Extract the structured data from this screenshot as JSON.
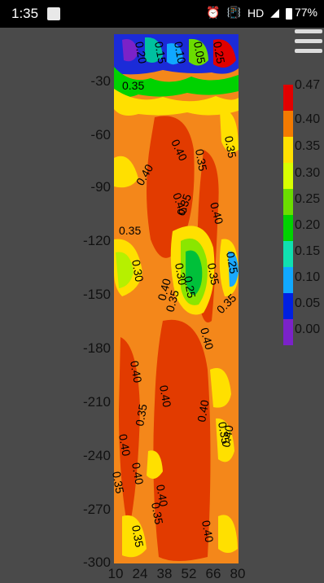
{
  "status": {
    "time": "1:35",
    "hd": "HD",
    "battery": "77%"
  },
  "chart_data": {
    "type": "heatmap",
    "x_ticks": [
      "10",
      "24",
      "38",
      "52",
      "66",
      "80"
    ],
    "y_ticks": [
      "-30",
      "-60",
      "-90",
      "-120",
      "-150",
      "-180",
      "-210",
      "-240",
      "-270",
      "-300"
    ],
    "colorbar": [
      "0.47",
      "0.40",
      "0.35",
      "0.30",
      "0.25",
      "0.20",
      "0.15",
      "0.10",
      "0.05",
      "0.00"
    ],
    "colorbar_colors": [
      "#e00000",
      "#f37a00",
      "#ffe000",
      "#d8ff00",
      "#6bdc00",
      "#00d200",
      "#10e0b0",
      "#10a8ff",
      "#0020e0",
      "#7b22c8"
    ],
    "contour_labels": [
      "0.35",
      "0.40",
      "0.30",
      "0.25",
      "0.20",
      "0.15",
      "0.10",
      "0.05"
    ]
  }
}
